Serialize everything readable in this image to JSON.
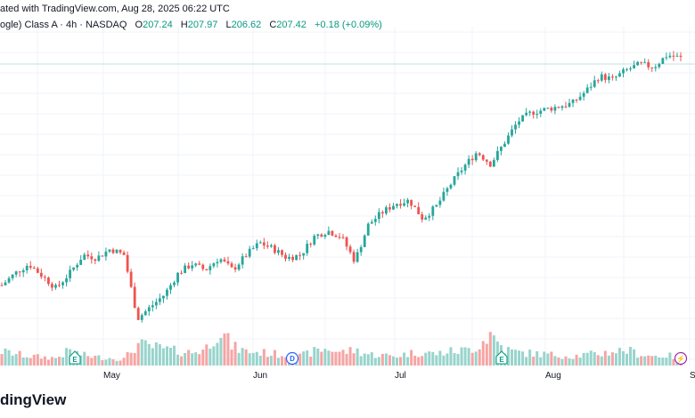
{
  "caption": "ated with TradingView.com, Aug 28, 2025 06:22 UTC",
  "header": {
    "symbol": "ogle) Class A · 4h · NASDAQ",
    "o_label": "O",
    "o_value": "207.24",
    "h_label": "H",
    "h_value": "207.97",
    "l_label": "L",
    "l_value": "206.62",
    "c_label": "C",
    "c_value": "207.42",
    "change": "+0.18 (+0.09%)"
  },
  "logo_text": "dingView",
  "colors": {
    "up": "#26a69a",
    "down": "#ef5350",
    "vol_up": "#98d4cc",
    "vol_down": "#f5a5a3",
    "grid": "#f0f3fa",
    "price_line": "#26a69a",
    "purple": "#9c27b0"
  },
  "chart_data": {
    "type": "candlestick",
    "x_axis": {
      "ticks": [
        "May",
        "Jun",
        "Jul",
        "Aug",
        "S"
      ]
    },
    "grid": true,
    "events": [
      {
        "label": "E",
        "kind": "earnings",
        "month": "Apr"
      },
      {
        "label": "D",
        "kind": "dividend",
        "month": "Jun"
      },
      {
        "label": "E",
        "kind": "earnings",
        "month": "Jul"
      },
      {
        "label": "⚡",
        "kind": "split",
        "month": "Aug"
      }
    ],
    "price_keypoints": [
      158,
      162,
      165,
      161,
      157,
      162,
      168,
      167,
      170,
      168,
      147,
      151,
      155,
      162,
      165,
      163,
      167,
      163,
      168,
      172,
      170,
      167,
      168,
      174,
      176,
      174,
      166,
      178,
      182,
      185,
      186,
      180,
      184,
      191,
      197,
      202,
      198,
      205,
      212,
      215,
      216,
      217,
      218,
      222,
      227,
      226,
      229,
      231,
      230,
      234,
      233
    ],
    "volume_keypoints": [
      30,
      25,
      20,
      18,
      16,
      32,
      22,
      18,
      16,
      14,
      45,
      40,
      35,
      30,
      28,
      35,
      78,
      40,
      30,
      28,
      25,
      22,
      20,
      30,
      36,
      28,
      33,
      24,
      22,
      20,
      26,
      28,
      25,
      30,
      32,
      40,
      68,
      35,
      28,
      26,
      24,
      22,
      20,
      23,
      25,
      30,
      33,
      24,
      20,
      22,
      15
    ]
  }
}
